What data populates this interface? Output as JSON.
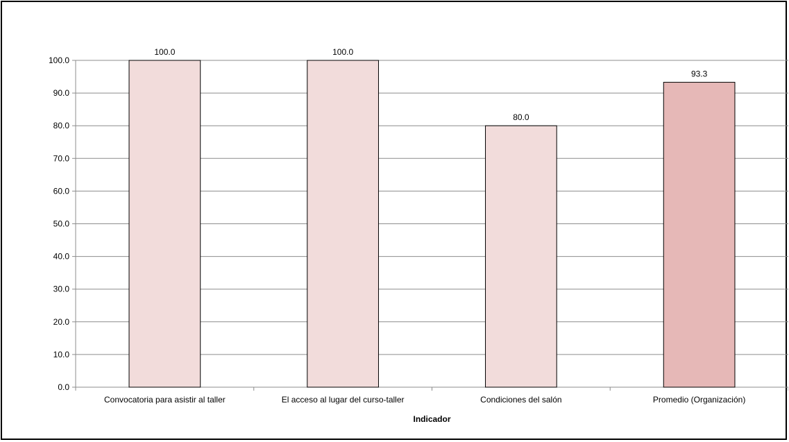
{
  "chart_data": {
    "type": "bar",
    "title": "",
    "xlabel": "Indicador",
    "ylabel": "",
    "ylim": [
      0,
      100
    ],
    "yticks": [
      0,
      10,
      20,
      30,
      40,
      50,
      60,
      70,
      80,
      90,
      100
    ],
    "ytick_labels": [
      "0.0",
      "10.0",
      "20.0",
      "30.0",
      "40.0",
      "50.0",
      "60.0",
      "70.0",
      "80.0",
      "90.0",
      "100.0"
    ],
    "grid": true,
    "legend": "none",
    "categories": [
      "Convocatoria para asistir al taller",
      "El acceso al lugar del curso-taller",
      "Condiciones del salón",
      "Promedio (Organización)"
    ],
    "values": [
      100.0,
      100.0,
      80.0,
      93.3
    ],
    "value_labels": [
      "100.0",
      "100.0",
      "80.0",
      "93.3"
    ],
    "colors": [
      "#f2dcdb",
      "#f2dcdb",
      "#f2dcdb",
      "#e6b8b7"
    ]
  }
}
